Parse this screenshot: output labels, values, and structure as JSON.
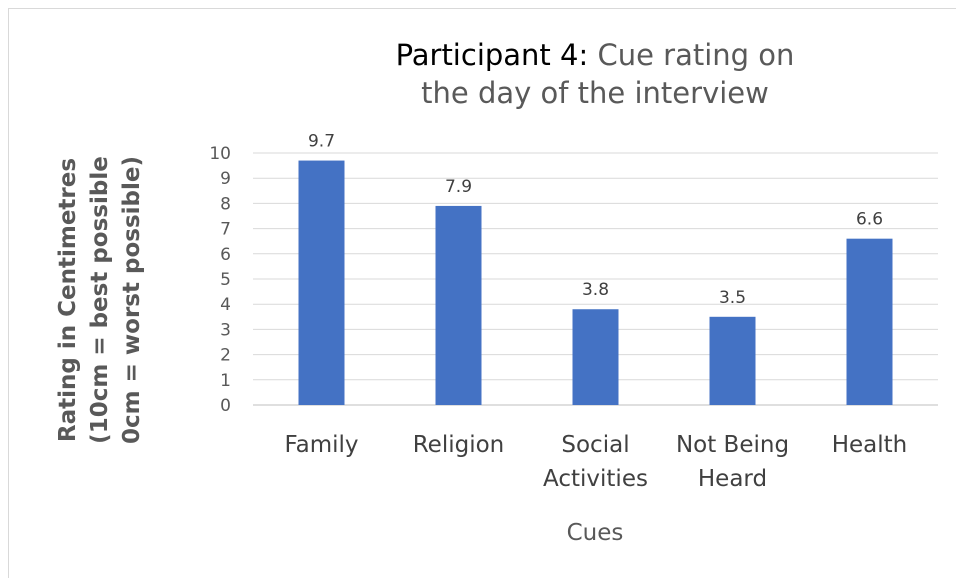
{
  "chart_data": {
    "type": "bar",
    "title": "Participant 4:",
    "subtitle": "Cue rating on the day of the interview",
    "ylabel": [
      "Rating in Centimetres",
      "(10cm = best possible",
      "0cm = worst possible)"
    ],
    "xlabel": "Cues",
    "categories": [
      "Family",
      "Religion",
      "Social Activities",
      "Not Being Heard",
      "Health"
    ],
    "values": [
      9.7,
      7.9,
      3.8,
      3.5,
      6.6
    ],
    "color": "#4472c4",
    "ylim": [
      0,
      10
    ],
    "yticks": [
      0,
      1,
      2,
      3,
      4,
      5,
      6,
      7,
      8,
      9,
      10
    ],
    "grid": true
  }
}
